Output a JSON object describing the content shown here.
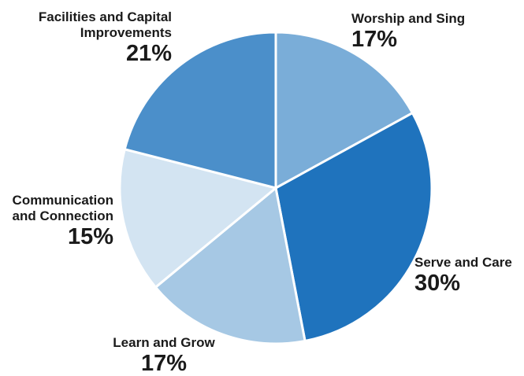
{
  "chart_data": {
    "type": "pie",
    "title": "",
    "start_angle_deg": 0,
    "direction": "clockwise",
    "slices": [
      {
        "label": "Worship and Sing",
        "value": 17,
        "display": "17%",
        "color": "#7aadd8"
      },
      {
        "label": "Serve and Care",
        "value": 30,
        "display": "30%",
        "color": "#1f73bd"
      },
      {
        "label": "Learn and Grow",
        "value": 17,
        "display": "17%",
        "color": "#a6c8e4"
      },
      {
        "label": "Communication and Connection",
        "value": 15,
        "display": "15%",
        "color": "#d3e4f2"
      },
      {
        "label": "Facilities and Capital Improvements",
        "value": 21,
        "display": "21%",
        "color": "#4b8fca"
      }
    ]
  }
}
